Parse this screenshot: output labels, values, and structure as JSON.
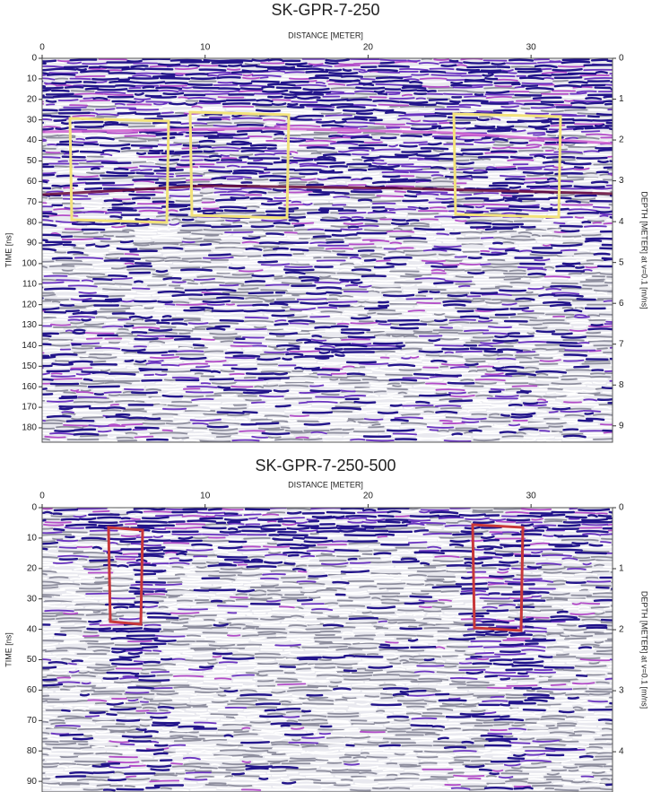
{
  "chart_data": [
    {
      "type": "radargram",
      "title": "SK-GPR-7-250",
      "x_label": "DISTANCE [METER]",
      "y_label": "TIME [ns]",
      "y2_label": "DEPTH [METER] at v=0.1 [m/ns]",
      "xlim": [
        0,
        35
      ],
      "xticks": [
        0,
        10,
        20,
        30
      ],
      "ylim": [
        0,
        187
      ],
      "yticks": [
        0,
        10,
        20,
        30,
        40,
        50,
        60,
        70,
        80,
        90,
        100,
        110,
        120,
        130,
        140,
        150,
        160,
        170,
        180
      ],
      "y2lim": [
        0,
        9.4
      ],
      "y2ticks": [
        0,
        1,
        2,
        3,
        4,
        5,
        6,
        7,
        8,
        9
      ]
    },
    {
      "type": "radargram",
      "title": "SK-GPR-7-250-500",
      "x_label": "DISTANCE [METER]",
      "y_label": "TIME [ns]",
      "y2_label": "DEPTH [METER] at v=0.1 [m/ns]",
      "xlim": [
        0,
        35
      ],
      "xticks": [
        0,
        10,
        20,
        30
      ],
      "ylim": [
        0,
        93.5
      ],
      "yticks": [
        0,
        10,
        20,
        30,
        40,
        50,
        60,
        70,
        80,
        90
      ],
      "y2lim": [
        0,
        4.66
      ],
      "y2ticks": [
        0,
        1,
        2,
        3,
        4
      ]
    }
  ]
}
